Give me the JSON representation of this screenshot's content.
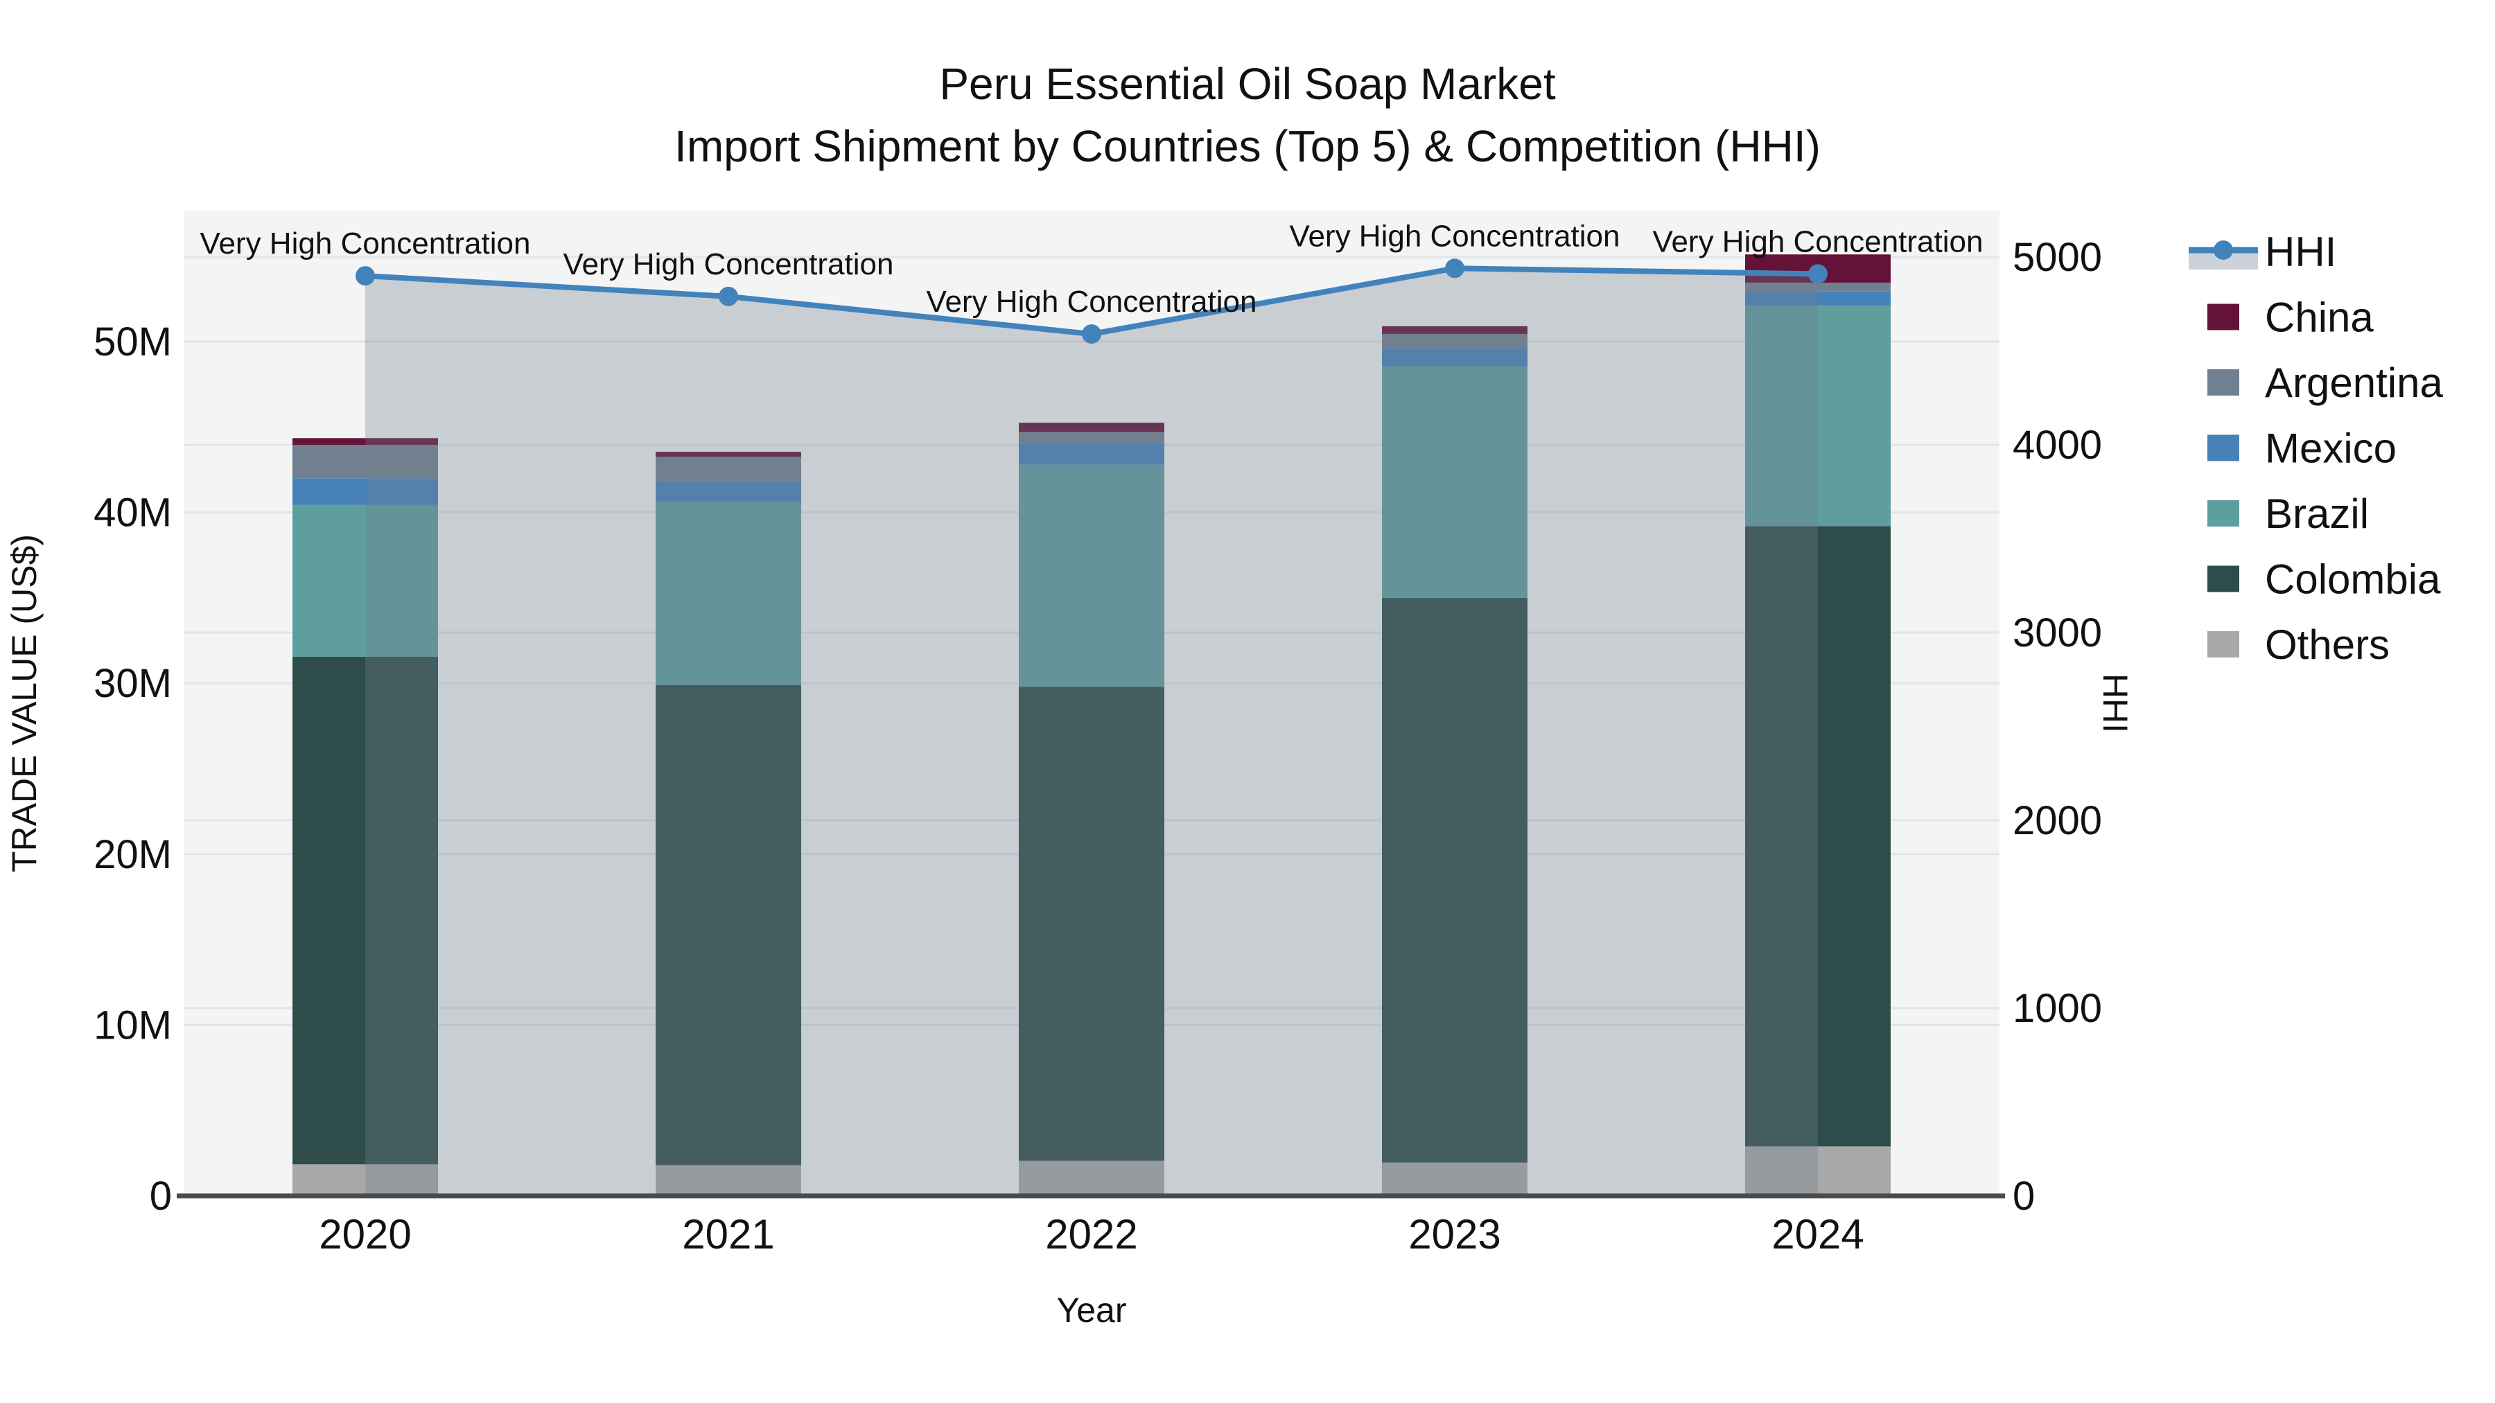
{
  "title": {
    "line1": "Peru Essential Oil Soap Market",
    "line2": "Import Shipment by Countries (Top 5) & Competition (HHI)"
  },
  "axes": {
    "x": {
      "title": "Year",
      "tick_labels": [
        "2020",
        "2021",
        "2022",
        "2023",
        "2024"
      ]
    },
    "y_left": {
      "title": "TRADE VALUE (US$)",
      "tick_labels": [
        "0",
        "10M",
        "20M",
        "30M",
        "40M",
        "50M"
      ],
      "tick_values_millions": [
        0,
        10,
        20,
        30,
        40,
        50
      ],
      "range_millions": [
        0,
        57.6
      ]
    },
    "y_right": {
      "title": "HHI",
      "tick_labels": [
        "0",
        "1000",
        "2000",
        "3000",
        "4000",
        "5000"
      ],
      "tick_values": [
        0,
        1000,
        2000,
        3000,
        4000,
        5000
      ],
      "range": [
        0,
        5245
      ]
    }
  },
  "chart_data": {
    "type": "combo-stacked-bar-line",
    "categories": [
      "2020",
      "2021",
      "2022",
      "2023",
      "2024"
    ],
    "bar_value_unit": "USD millions",
    "series": [
      {
        "name": "Others",
        "color": "#A8A8A8",
        "values": [
          1.85,
          1.8,
          2.05,
          1.95,
          2.9
        ]
      },
      {
        "name": "Colombia",
        "color": "#2E4D4A",
        "values": [
          29.7,
          28.1,
          27.75,
          33.05,
          36.3
        ]
      },
      {
        "name": "Brazil",
        "color": "#5F9E9E",
        "values": [
          8.9,
          10.7,
          13.0,
          13.55,
          12.9
        ]
      },
      {
        "name": "Mexico",
        "color": "#4682B8",
        "values": [
          1.55,
          1.2,
          1.25,
          1.05,
          0.85
        ]
      },
      {
        "name": "Argentina",
        "color": "#708090",
        "values": [
          1.95,
          1.45,
          0.65,
          0.85,
          0.5
        ]
      },
      {
        "name": "China",
        "color": "#641238",
        "values": [
          0.4,
          0.3,
          0.55,
          0.45,
          1.65
        ]
      }
    ],
    "line_series": {
      "name": "HHI",
      "color": "#4383BC",
      "area_fill": "rgba(112,128,144,0.32)",
      "values": [
        4900,
        4790,
        4590,
        4940,
        4910
      ]
    },
    "annotations": [
      {
        "text": "Very High Concentration",
        "category": "2020"
      },
      {
        "text": "Very High Concentration",
        "category": "2021"
      },
      {
        "text": "Very High Concentration",
        "category": "2022"
      },
      {
        "text": "Very High Concentration",
        "category": "2023"
      },
      {
        "text": "Very High Concentration",
        "category": "2024"
      }
    ],
    "layout_hints": {
      "plot_background": "#F3F4F4",
      "gridline_color": "#E2E4E7",
      "axis_line_color": "#4B4B4B",
      "grid_on": true,
      "legend_position": "right"
    }
  },
  "legend": {
    "items": [
      {
        "label": "HHI",
        "type": "line-marker",
        "color": "#4383BC",
        "band_color": "#CCD2D9"
      },
      {
        "label": "China",
        "type": "swatch",
        "color": "#641238"
      },
      {
        "label": "Argentina",
        "type": "swatch",
        "color": "#708090"
      },
      {
        "label": "Mexico",
        "type": "swatch",
        "color": "#4682B8"
      },
      {
        "label": "Brazil",
        "type": "swatch",
        "color": "#5F9E9E"
      },
      {
        "label": "Colombia",
        "type": "swatch",
        "color": "#2E4D4A"
      },
      {
        "label": "Others",
        "type": "swatch",
        "color": "#A8A8A8"
      }
    ]
  }
}
